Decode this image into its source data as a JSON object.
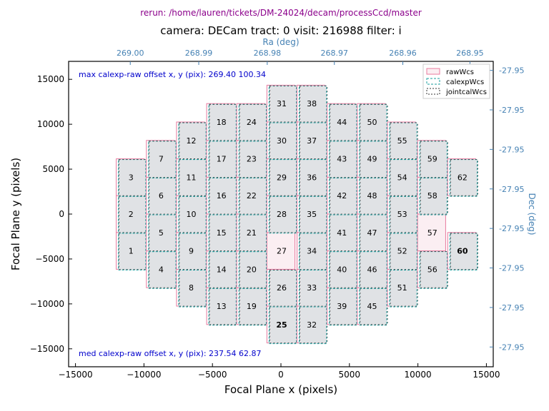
{
  "chart_data": {
    "type": "scatter",
    "rerun": "rerun: /home/lauren/tickets/DM-24024/decam/processCcd/master",
    "title": "camera: DECam  tract: 0  visit: 216988 filter: i",
    "xlabel": "Focal Plane x (pixels)",
    "ylabel": "Focal Plane y (pixels)",
    "top_axis_label": "Ra (deg)",
    "right_axis_label": "Dec (deg)",
    "xlim": [
      -15500,
      15500
    ],
    "ylim": [
      -17000,
      17000
    ],
    "x_ticks": [
      -15000,
      -10000,
      -5000,
      0,
      5000,
      10000,
      15000
    ],
    "x_tick_labels": [
      "−15000",
      "−10000",
      "−5000",
      "0",
      "5000",
      "10000",
      "15000"
    ],
    "y_ticks": [
      -15000,
      -10000,
      -5000,
      0,
      5000,
      10000,
      15000
    ],
    "y_tick_labels": [
      "−15000",
      "−10000",
      "−5000",
      "0",
      "5000",
      "10000",
      "15000"
    ],
    "top_ticks": [
      -11000,
      -6000,
      -1000,
      3900,
      8900,
      13800
    ],
    "top_tick_labels": [
      "269.00",
      "268.99",
      "268.98",
      "268.97",
      "268.96",
      "268.95"
    ],
    "right_ticks": [
      16000,
      11600,
      7200,
      2800,
      -1600,
      -6000,
      -10400,
      -14800
    ],
    "right_tick_labels": [
      "-27.95",
      "-27.95",
      "-27.95",
      "-27.95",
      "-27.95",
      "-27.95",
      "-27.95",
      "-27.95"
    ],
    "max_offset_text": "max calexp-raw offset x, y (pix):  269.40  100.34",
    "med_offset_text": "med calexp-raw offset x, y (pix):  237.54   62.87",
    "legend": [
      "rawWcs",
      "calexpWcs",
      "jointcalWcs"
    ],
    "colors": {
      "raw": "#e8799e",
      "calexp": "#1a9e9e",
      "jointcal": "#333333",
      "ccd_fill": "#e0e2e5",
      "missing_fill": "#fbeef2",
      "highlight_max": "#9900cc",
      "highlight_med": "#0000cc",
      "info_text": "#0000cc",
      "rerun_text": "#8b008b",
      "secondary_axis": "#4682b4"
    },
    "ccd_size": [
      2048,
      4096
    ],
    "ccds": [
      {
        "id": "1",
        "x": -11000,
        "y": -4100,
        "label": "1"
      },
      {
        "id": "2",
        "x": -11000,
        "y": 0,
        "label": "2"
      },
      {
        "id": "3",
        "x": -11000,
        "y": 4100,
        "label": "3"
      },
      {
        "id": "4",
        "x": -8800,
        "y": -6150,
        "label": "4"
      },
      {
        "id": "5",
        "x": -8800,
        "y": -2050,
        "label": "5"
      },
      {
        "id": "6",
        "x": -8800,
        "y": 2050,
        "label": "6"
      },
      {
        "id": "7",
        "x": -8800,
        "y": 6150,
        "label": "7"
      },
      {
        "id": "8",
        "x": -6600,
        "y": -8200,
        "label": "8"
      },
      {
        "id": "9",
        "x": -6600,
        "y": -4100,
        "label": "9"
      },
      {
        "id": "10",
        "x": -6600,
        "y": 0,
        "label": "10"
      },
      {
        "id": "11",
        "x": -6600,
        "y": 4100,
        "label": "11"
      },
      {
        "id": "12",
        "x": -6600,
        "y": 8200,
        "label": "12"
      },
      {
        "id": "13",
        "x": -4400,
        "y": -10250,
        "label": "13"
      },
      {
        "id": "14",
        "x": -4400,
        "y": -6150,
        "label": "14"
      },
      {
        "id": "15",
        "x": -4400,
        "y": -2050,
        "label": "15"
      },
      {
        "id": "16",
        "x": -4400,
        "y": 2050,
        "label": "16"
      },
      {
        "id": "17",
        "x": -4400,
        "y": 6150,
        "label": "17"
      },
      {
        "id": "18",
        "x": -4400,
        "y": 10250,
        "label": "18"
      },
      {
        "id": "19",
        "x": -2200,
        "y": -10250,
        "label": "19"
      },
      {
        "id": "20",
        "x": -2200,
        "y": -6150,
        "label": "20"
      },
      {
        "id": "21",
        "x": -2200,
        "y": -2050,
        "label": "21"
      },
      {
        "id": "22",
        "x": -2200,
        "y": 2050,
        "label": "22"
      },
      {
        "id": "23",
        "x": -2200,
        "y": 6150,
        "label": "23"
      },
      {
        "id": "24",
        "x": -2200,
        "y": 10250,
        "label": "24"
      },
      {
        "id": "25",
        "x": 0,
        "y": -12300,
        "label": "25",
        "highlight": "med"
      },
      {
        "id": "26",
        "x": 0,
        "y": -8200,
        "label": "26"
      },
      {
        "id": "27",
        "x": 0,
        "y": -4100,
        "label": "27",
        "missing": true
      },
      {
        "id": "28",
        "x": 0,
        "y": 0,
        "label": "28"
      },
      {
        "id": "29",
        "x": 0,
        "y": 4100,
        "label": "29"
      },
      {
        "id": "30",
        "x": 0,
        "y": 8200,
        "label": "30"
      },
      {
        "id": "31",
        "x": 0,
        "y": 12300,
        "label": "31"
      },
      {
        "id": "32",
        "x": 2200,
        "y": -12300,
        "label": "32"
      },
      {
        "id": "33",
        "x": 2200,
        "y": -8200,
        "label": "33"
      },
      {
        "id": "34",
        "x": 2200,
        "y": -4100,
        "label": "34"
      },
      {
        "id": "35",
        "x": 2200,
        "y": 0,
        "label": "35"
      },
      {
        "id": "36",
        "x": 2200,
        "y": 4100,
        "label": "36"
      },
      {
        "id": "37",
        "x": 2200,
        "y": 8200,
        "label": "37"
      },
      {
        "id": "38",
        "x": 2200,
        "y": 12300,
        "label": "38"
      },
      {
        "id": "39",
        "x": 4400,
        "y": -10250,
        "label": "39"
      },
      {
        "id": "40",
        "x": 4400,
        "y": -6150,
        "label": "40"
      },
      {
        "id": "41",
        "x": 4400,
        "y": -2050,
        "label": "41"
      },
      {
        "id": "42",
        "x": 4400,
        "y": 2050,
        "label": "42"
      },
      {
        "id": "43",
        "x": 4400,
        "y": 6150,
        "label": "43"
      },
      {
        "id": "44",
        "x": 4400,
        "y": 10250,
        "label": "44"
      },
      {
        "id": "45",
        "x": 6600,
        "y": -10250,
        "label": "45"
      },
      {
        "id": "46",
        "x": 6600,
        "y": -6150,
        "label": "46"
      },
      {
        "id": "47",
        "x": 6600,
        "y": -2050,
        "label": "47"
      },
      {
        "id": "48",
        "x": 6600,
        "y": 2050,
        "label": "48"
      },
      {
        "id": "49",
        "x": 6600,
        "y": 6150,
        "label": "49"
      },
      {
        "id": "50",
        "x": 6600,
        "y": 10250,
        "label": "50"
      },
      {
        "id": "51",
        "x": 8800,
        "y": -8200,
        "label": "51"
      },
      {
        "id": "52",
        "x": 8800,
        "y": -4100,
        "label": "52"
      },
      {
        "id": "53",
        "x": 8800,
        "y": 0,
        "label": "53"
      },
      {
        "id": "54",
        "x": 8800,
        "y": 4100,
        "label": "54"
      },
      {
        "id": "55",
        "x": 8800,
        "y": 8200,
        "label": "55"
      },
      {
        "id": "56",
        "x": 11000,
        "y": -6150,
        "label": "56"
      },
      {
        "id": "57",
        "x": 11000,
        "y": -2050,
        "label": "57",
        "missing": true
      },
      {
        "id": "58",
        "x": 11000,
        "y": 2050,
        "label": "58"
      },
      {
        "id": "59",
        "x": 11000,
        "y": 6150,
        "label": "59"
      },
      {
        "id": "60",
        "x": 13200,
        "y": -4100,
        "label": "60",
        "highlight": "max"
      },
      {
        "id": "62",
        "x": 13200,
        "y": 4100,
        "label": "62"
      }
    ]
  }
}
